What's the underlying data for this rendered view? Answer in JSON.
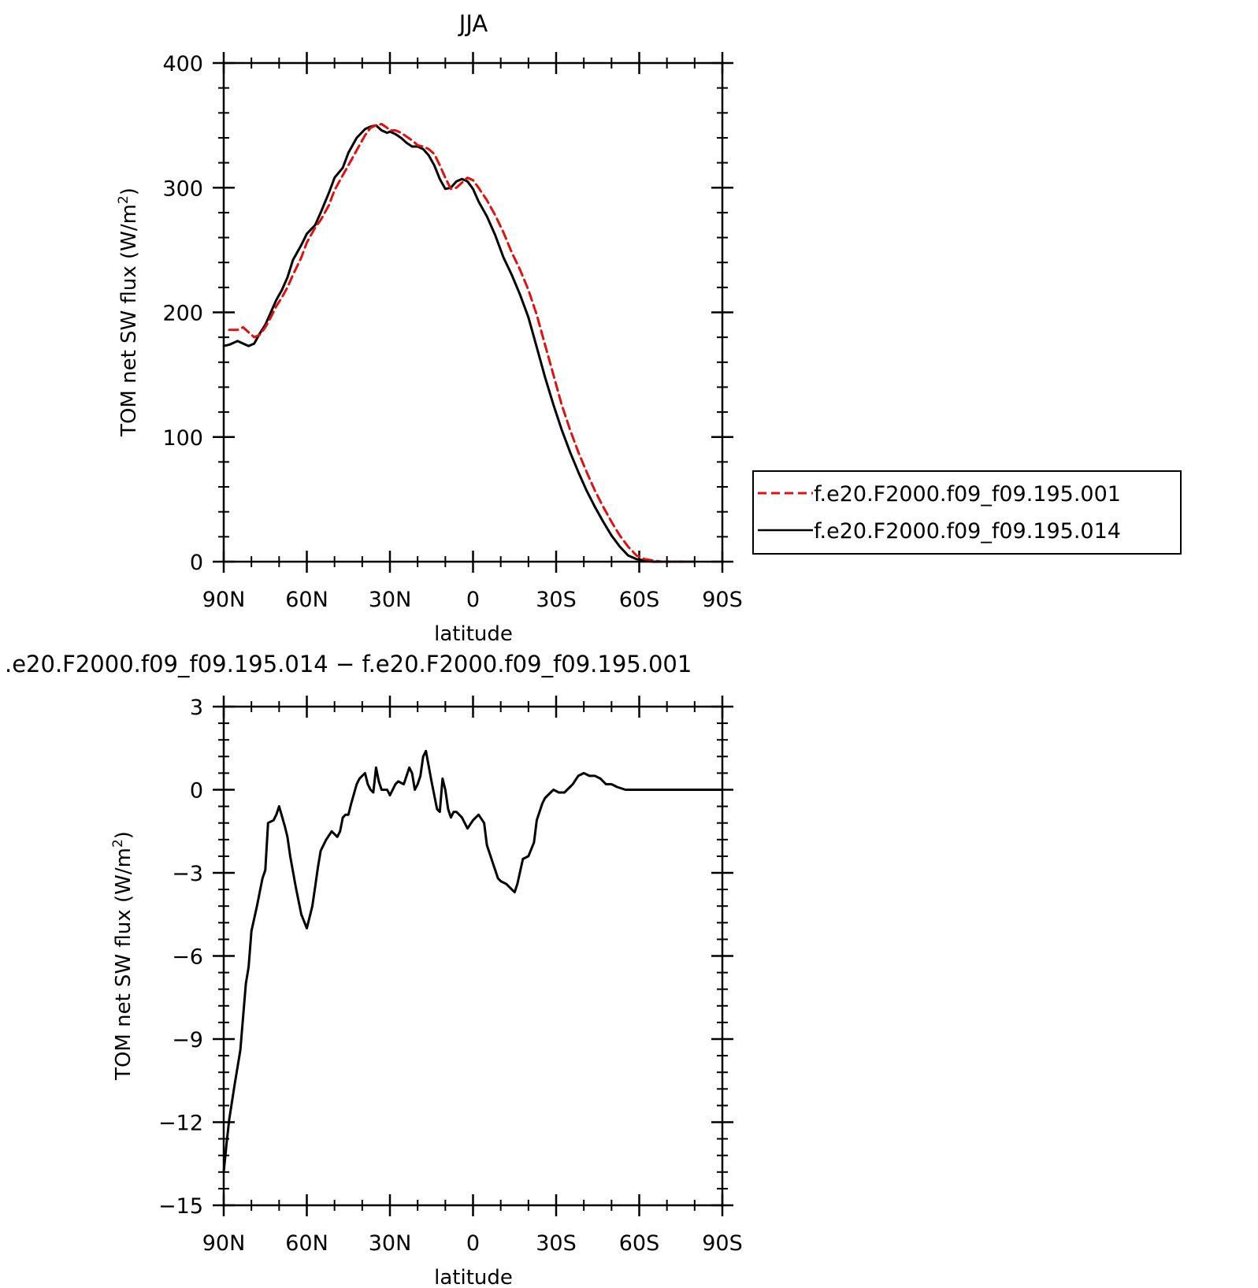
{
  "chart_data": [
    {
      "type": "line",
      "title": "JJA",
      "xlabel": "latitude",
      "ylabel": "TOM net SW flux (W/m",
      "ylabel_sup": "2",
      "ylabel_close": ")",
      "ylim": [
        0,
        400
      ],
      "yticks": [
        0,
        100,
        200,
        300,
        400
      ],
      "ytick_labels": [
        "0",
        "100",
        "200",
        "300",
        "400"
      ],
      "xlim": [
        90,
        -90
      ],
      "xticks": [
        90,
        60,
        30,
        0,
        -30,
        -60,
        -90
      ],
      "xtick_labels": [
        "90N",
        "60N",
        "30N",
        "0",
        "30S",
        "60S",
        "90S"
      ],
      "grid": false,
      "legend": "right",
      "series": [
        {
          "name": "f.e20.F2000.f09_f09.195.001",
          "color": "#e01010",
          "dash": "dashed",
          "x": [
            88,
            85,
            83,
            81,
            79,
            77,
            75,
            73,
            71,
            69,
            67,
            65,
            62,
            60,
            57,
            55,
            52,
            50,
            47,
            45,
            42,
            39,
            37,
            35,
            33,
            31,
            30,
            28,
            26,
            24,
            22,
            20,
            18,
            16,
            14,
            12,
            10,
            8,
            6,
            4,
            2,
            0,
            -2,
            -5,
            -8,
            -11,
            -14,
            -17,
            -20,
            -23,
            -26,
            -29,
            -32,
            -35,
            -38,
            -41,
            -44,
            -47,
            -50,
            -53,
            -56,
            -59,
            -62,
            -65,
            -68,
            -71,
            -75,
            -80
          ],
          "y": [
            186,
            186,
            188,
            184,
            180,
            182,
            188,
            196,
            205,
            212,
            220,
            230,
            244,
            256,
            268,
            274,
            286,
            298,
            310,
            318,
            330,
            342,
            348,
            350,
            351,
            348,
            346,
            346,
            344,
            341,
            338,
            334,
            333,
            331,
            327,
            318,
            308,
            299,
            300,
            304,
            308,
            306,
            300,
            290,
            278,
            264,
            248,
            234,
            218,
            198,
            174,
            150,
            126,
            106,
            88,
            72,
            57,
            44,
            32,
            21,
            12,
            5,
            2,
            1,
            0,
            0,
            0,
            0
          ]
        },
        {
          "name": "f.e20.F2000.f09_f09.195.014",
          "color": "#000000",
          "dash": "solid",
          "x": [
            90,
            88,
            85,
            83,
            81,
            79,
            77,
            75,
            73,
            71,
            69,
            67,
            65,
            62,
            60,
            57,
            55,
            52,
            50,
            47,
            45,
            42,
            39,
            37,
            35,
            33,
            31,
            30,
            28,
            26,
            24,
            22,
            20,
            18,
            16,
            14,
            12,
            10,
            8,
            6,
            4,
            2,
            0,
            -2,
            -5,
            -8,
            -11,
            -14,
            -17,
            -20,
            -23,
            -26,
            -29,
            -32,
            -35,
            -38,
            -41,
            -44,
            -47,
            -50,
            -53,
            -56,
            -59,
            -62,
            -65,
            -68,
            -71,
            -75,
            -80
          ],
          "y": [
            173,
            174,
            177,
            175,
            173,
            175,
            183,
            190,
            200,
            210,
            218,
            228,
            242,
            254,
            263,
            270,
            280,
            296,
            308,
            316,
            328,
            340,
            347,
            349,
            350,
            346,
            344,
            345,
            343,
            340,
            336,
            333,
            333,
            331,
            326,
            318,
            307,
            299,
            300,
            305,
            307,
            305,
            299,
            289,
            277,
            262,
            244,
            230,
            214,
            196,
            172,
            148,
            126,
            106,
            88,
            72,
            57,
            44,
            32,
            21,
            12,
            5,
            2,
            1,
            0,
            0,
            0,
            0,
            0
          ]
        }
      ]
    },
    {
      "type": "line",
      "title": ".e20.F2000.f09_f09.195.014 − f.e20.F2000.f09_f09.195.001",
      "xlabel": "latitude",
      "ylabel": "TOM net SW flux (W/m",
      "ylabel_sup": "2",
      "ylabel_close": ")",
      "ylim": [
        -15,
        3
      ],
      "yticks": [
        -15,
        -12,
        -9,
        -6,
        -3,
        0,
        3
      ],
      "ytick_labels": [
        "−15",
        "−12",
        "−9",
        "−6",
        "−3",
        "0",
        "3"
      ],
      "xlim": [
        90,
        -90
      ],
      "xticks": [
        90,
        60,
        30,
        0,
        -30,
        -60,
        -90
      ],
      "xtick_labels": [
        "90N",
        "60N",
        "30N",
        "0",
        "30S",
        "60S",
        "90S"
      ],
      "grid": false,
      "series": [
        {
          "color": "#000000",
          "x": [
            90,
            89,
            88,
            86,
            84,
            82,
            81,
            80,
            78,
            76,
            75,
            74,
            72,
            71,
            70,
            68,
            67,
            66,
            64,
            62,
            60,
            58,
            57,
            56,
            55,
            53,
            51,
            49,
            48,
            47,
            46,
            45,
            44,
            42,
            41,
            40,
            39,
            38,
            37,
            36,
            35,
            34,
            33,
            32,
            31,
            30,
            28,
            27,
            25,
            23,
            22,
            21,
            20,
            19,
            18,
            17,
            15,
            14,
            13,
            12,
            11,
            10,
            9,
            8,
            7,
            6,
            4,
            2,
            0,
            -2,
            -4,
            -5,
            -7,
            -9,
            -10,
            -12,
            -14,
            -15,
            -16,
            -18,
            -20,
            -22,
            -23,
            -24,
            -25,
            -26,
            -28,
            -29,
            -31,
            -33,
            -35,
            -36,
            -38,
            -40,
            -42,
            -44,
            -46,
            -48,
            -50,
            -52,
            -55,
            -58,
            -61,
            -63,
            -66,
            -70,
            -75,
            -80,
            -85,
            -90
          ],
          "y": [
            -13.8,
            -12.8,
            -11.9,
            -10.6,
            -9.4,
            -7.0,
            -6.4,
            -5.1,
            -4.2,
            -3.2,
            -2.9,
            -1.2,
            -1.1,
            -0.9,
            -0.6,
            -1.3,
            -1.7,
            -2.4,
            -3.5,
            -4.5,
            -5.0,
            -4.2,
            -3.5,
            -2.8,
            -2.2,
            -1.8,
            -1.5,
            -1.7,
            -1.5,
            -1.0,
            -0.9,
            -0.9,
            -0.5,
            0.2,
            0.4,
            0.5,
            0.6,
            0.2,
            0.0,
            -0.1,
            0.8,
            0.3,
            0.0,
            0.0,
            0.0,
            -0.2,
            0.2,
            0.3,
            0.2,
            0.8,
            0.6,
            0.0,
            0.2,
            0.5,
            1.2,
            1.4,
            0.3,
            -0.2,
            -0.7,
            -0.8,
            0.4,
            0.0,
            -0.7,
            -1.0,
            -0.8,
            -0.8,
            -1.0,
            -1.4,
            -1.1,
            -0.9,
            -1.2,
            -2.0,
            -2.6,
            -3.2,
            -3.3,
            -3.4,
            -3.6,
            -3.7,
            -3.4,
            -2.5,
            -2.4,
            -1.9,
            -1.1,
            -0.8,
            -0.5,
            -0.3,
            -0.1,
            0.0,
            -0.1,
            -0.1,
            0.1,
            0.2,
            0.5,
            0.6,
            0.5,
            0.5,
            0.4,
            0.2,
            0.2,
            0.1,
            0.0,
            0.0,
            0.0,
            0.0,
            0.0,
            0.0,
            0.0,
            0.0,
            0.0,
            0.0
          ]
        }
      ]
    }
  ]
}
